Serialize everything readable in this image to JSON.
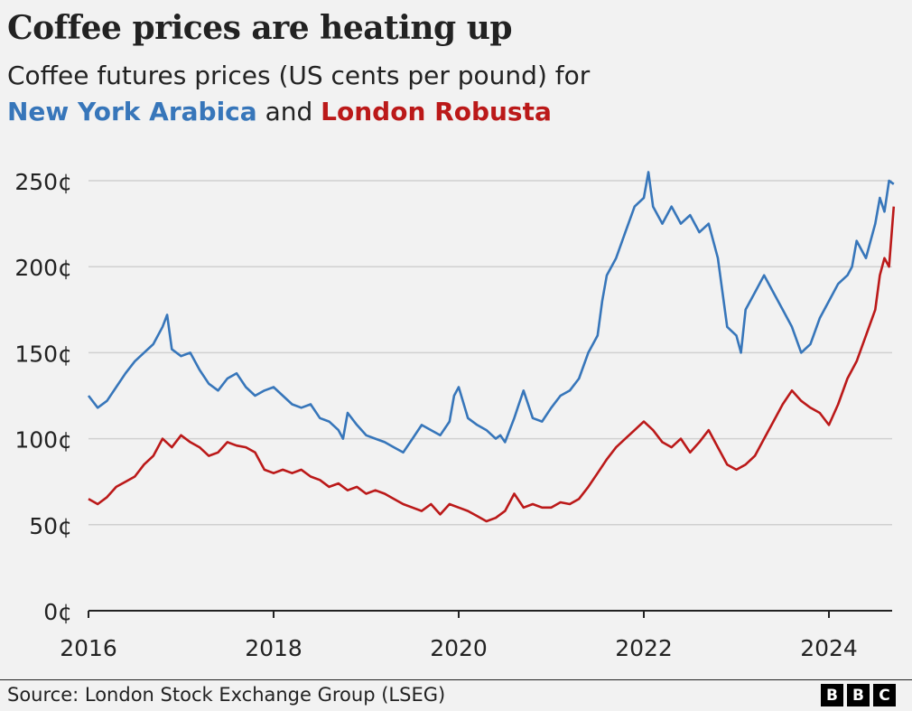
{
  "title": "Coffee prices are heating up",
  "subtitle_line1": "Coffee futures prices (US cents per pound) for",
  "subtitle_series1": "New York Arabica",
  "subtitle_and": "and",
  "subtitle_series2": "London Robusta",
  "source": "Source: London Stock Exchange Group (LSEG)",
  "logo_letters": [
    "B",
    "B",
    "C"
  ],
  "colors": {
    "arabica": "#3776ba",
    "robusta": "#bb1919",
    "grid": "#d0d0d0",
    "axis": "#222222"
  },
  "chart_data": {
    "type": "line",
    "title": "Coffee prices are heating up",
    "ylim": [
      0,
      260
    ],
    "yticks": [
      0,
      50,
      100,
      150,
      200,
      250
    ],
    "ytick_labels": [
      "0¢",
      "50¢",
      "100¢",
      "150¢",
      "200¢",
      "250¢"
    ],
    "xlim": [
      2016.0,
      2024.7
    ],
    "xticks": [
      2016,
      2018,
      2020,
      2022,
      2024
    ],
    "xtick_labels": [
      "2016",
      "2018",
      "2020",
      "2022",
      "2024"
    ],
    "grid": true,
    "legend": "subtitle",
    "series": [
      {
        "name": "New York Arabica",
        "color": "#3776ba",
        "x": [
          2016.0,
          2016.1,
          2016.2,
          2016.3,
          2016.4,
          2016.5,
          2016.6,
          2016.7,
          2016.8,
          2016.85,
          2016.9,
          2017.0,
          2017.1,
          2017.2,
          2017.3,
          2017.4,
          2017.5,
          2017.6,
          2017.7,
          2017.8,
          2017.9,
          2018.0,
          2018.1,
          2018.2,
          2018.3,
          2018.4,
          2018.5,
          2018.6,
          2018.7,
          2018.75,
          2018.8,
          2018.9,
          2019.0,
          2019.1,
          2019.2,
          2019.3,
          2019.4,
          2019.5,
          2019.6,
          2019.7,
          2019.8,
          2019.9,
          2019.95,
          2020.0,
          2020.1,
          2020.2,
          2020.3,
          2020.4,
          2020.45,
          2020.5,
          2020.6,
          2020.65,
          2020.7,
          2020.8,
          2020.9,
          2021.0,
          2021.1,
          2021.2,
          2021.3,
          2021.4,
          2021.5,
          2021.55,
          2021.6,
          2021.7,
          2021.8,
          2021.9,
          2022.0,
          2022.05,
          2022.1,
          2022.2,
          2022.3,
          2022.4,
          2022.5,
          2022.6,
          2022.7,
          2022.8,
          2022.9,
          2023.0,
          2023.05,
          2023.1,
          2023.2,
          2023.3,
          2023.4,
          2023.5,
          2023.6,
          2023.7,
          2023.8,
          2023.9,
          2024.0,
          2024.1,
          2024.2,
          2024.25,
          2024.3,
          2024.4,
          2024.5,
          2024.55,
          2024.6,
          2024.65,
          2024.7
        ],
        "y": [
          125,
          118,
          122,
          130,
          138,
          145,
          150,
          155,
          165,
          172,
          152,
          148,
          150,
          140,
          132,
          128,
          135,
          138,
          130,
          125,
          128,
          130,
          125,
          120,
          118,
          120,
          112,
          110,
          105,
          100,
          115,
          108,
          102,
          100,
          98,
          95,
          92,
          100,
          108,
          105,
          102,
          110,
          125,
          130,
          112,
          108,
          105,
          100,
          102,
          98,
          112,
          120,
          128,
          112,
          110,
          118,
          125,
          128,
          135,
          150,
          160,
          180,
          195,
          205,
          220,
          235,
          240,
          255,
          235,
          225,
          235,
          225,
          230,
          220,
          225,
          205,
          165,
          160,
          150,
          175,
          185,
          195,
          185,
          175,
          165,
          150,
          155,
          170,
          180,
          190,
          195,
          200,
          215,
          205,
          225,
          240,
          232,
          250,
          248
        ]
      },
      {
        "name": "London Robusta",
        "color": "#bb1919",
        "x": [
          2016.0,
          2016.1,
          2016.2,
          2016.3,
          2016.4,
          2016.5,
          2016.6,
          2016.7,
          2016.8,
          2016.9,
          2017.0,
          2017.1,
          2017.2,
          2017.3,
          2017.4,
          2017.5,
          2017.6,
          2017.7,
          2017.8,
          2017.9,
          2018.0,
          2018.1,
          2018.2,
          2018.3,
          2018.4,
          2018.5,
          2018.6,
          2018.7,
          2018.8,
          2018.9,
          2019.0,
          2019.1,
          2019.2,
          2019.3,
          2019.4,
          2019.5,
          2019.6,
          2019.7,
          2019.8,
          2019.9,
          2020.0,
          2020.1,
          2020.2,
          2020.3,
          2020.4,
          2020.5,
          2020.6,
          2020.7,
          2020.8,
          2020.9,
          2021.0,
          2021.1,
          2021.2,
          2021.3,
          2021.4,
          2021.5,
          2021.6,
          2021.7,
          2021.8,
          2021.9,
          2022.0,
          2022.1,
          2022.2,
          2022.3,
          2022.4,
          2022.5,
          2022.6,
          2022.7,
          2022.8,
          2022.9,
          2023.0,
          2023.1,
          2023.2,
          2023.3,
          2023.4,
          2023.5,
          2023.6,
          2023.7,
          2023.8,
          2023.9,
          2024.0,
          2024.1,
          2024.2,
          2024.3,
          2024.4,
          2024.5,
          2024.55,
          2024.6,
          2024.65,
          2024.7
        ],
        "y": [
          65,
          62,
          66,
          72,
          75,
          78,
          85,
          90,
          100,
          95,
          102,
          98,
          95,
          90,
          92,
          98,
          96,
          95,
          92,
          82,
          80,
          82,
          80,
          82,
          78,
          76,
          72,
          74,
          70,
          72,
          68,
          70,
          68,
          65,
          62,
          60,
          58,
          62,
          56,
          62,
          60,
          58,
          55,
          52,
          54,
          58,
          68,
          60,
          62,
          60,
          60,
          63,
          62,
          65,
          72,
          80,
          88,
          95,
          100,
          105,
          110,
          105,
          98,
          95,
          100,
          92,
          98,
          105,
          95,
          85,
          82,
          85,
          90,
          100,
          110,
          120,
          128,
          122,
          118,
          115,
          108,
          120,
          135,
          145,
          160,
          175,
          195,
          205,
          200,
          235
        ]
      }
    ]
  }
}
